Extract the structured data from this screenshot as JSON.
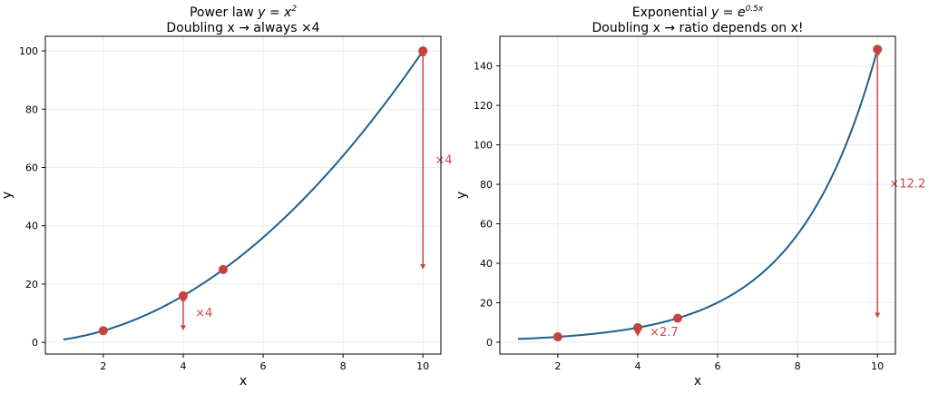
{
  "colors": {
    "curve": "#1f5f8b",
    "marker": "#c94040",
    "annotation": "#d04545",
    "grid": "#e6e6e6",
    "axis": "#000000"
  },
  "chart_data": [
    {
      "type": "line",
      "title_prefix": "Power law ",
      "title_math": "y = x",
      "title_sup": "2",
      "subtitle": "Doubling x → always ×4",
      "xlabel": "x",
      "ylabel": "y",
      "xlim": [
        0.55,
        10.45
      ],
      "ylim": [
        -4,
        105
      ],
      "xticks": [
        2,
        4,
        6,
        8,
        10
      ],
      "yticks": [
        0,
        20,
        40,
        60,
        80,
        100
      ],
      "grid": true,
      "function": "power",
      "curve_x_range": [
        1,
        10
      ],
      "points": [
        {
          "x": 2,
          "y": 4
        },
        {
          "x": 4,
          "y": 16
        },
        {
          "x": 5,
          "y": 25
        },
        {
          "x": 10,
          "y": 100
        }
      ],
      "arrows": [
        {
          "x": 4,
          "from_y": 16,
          "to_y": 4,
          "label": "×4",
          "label_x": 4.3,
          "label_y": 10
        },
        {
          "x": 10,
          "from_y": 100,
          "to_y": 25,
          "label": "×4",
          "label_x": 10.3,
          "label_y": 62.5
        }
      ]
    },
    {
      "type": "line",
      "title_prefix": "Exponential ",
      "title_math": "y = e",
      "title_sup": "0.5x",
      "subtitle": "Doubling x → ratio depends on x!",
      "xlabel": "x",
      "ylabel": "y",
      "xlim": [
        0.55,
        10.45
      ],
      "ylim": [
        -6,
        155
      ],
      "xticks": [
        2,
        4,
        6,
        8,
        10
      ],
      "yticks": [
        0,
        20,
        40,
        60,
        80,
        100,
        120,
        140
      ],
      "grid": true,
      "function": "exponential",
      "curve_x_range": [
        1,
        10
      ],
      "points": [
        {
          "x": 2,
          "y": 2.72
        },
        {
          "x": 4,
          "y": 7.39
        },
        {
          "x": 5,
          "y": 12.18
        },
        {
          "x": 10,
          "y": 148.41
        }
      ],
      "arrows": [
        {
          "x": 4,
          "from_y": 7.39,
          "to_y": 2.72,
          "label": "×2.7",
          "label_x": 4.3,
          "label_y": 5
        },
        {
          "x": 10,
          "from_y": 148.41,
          "to_y": 12.18,
          "label": "×12.2",
          "label_x": 10.3,
          "label_y": 80.3
        }
      ]
    }
  ]
}
